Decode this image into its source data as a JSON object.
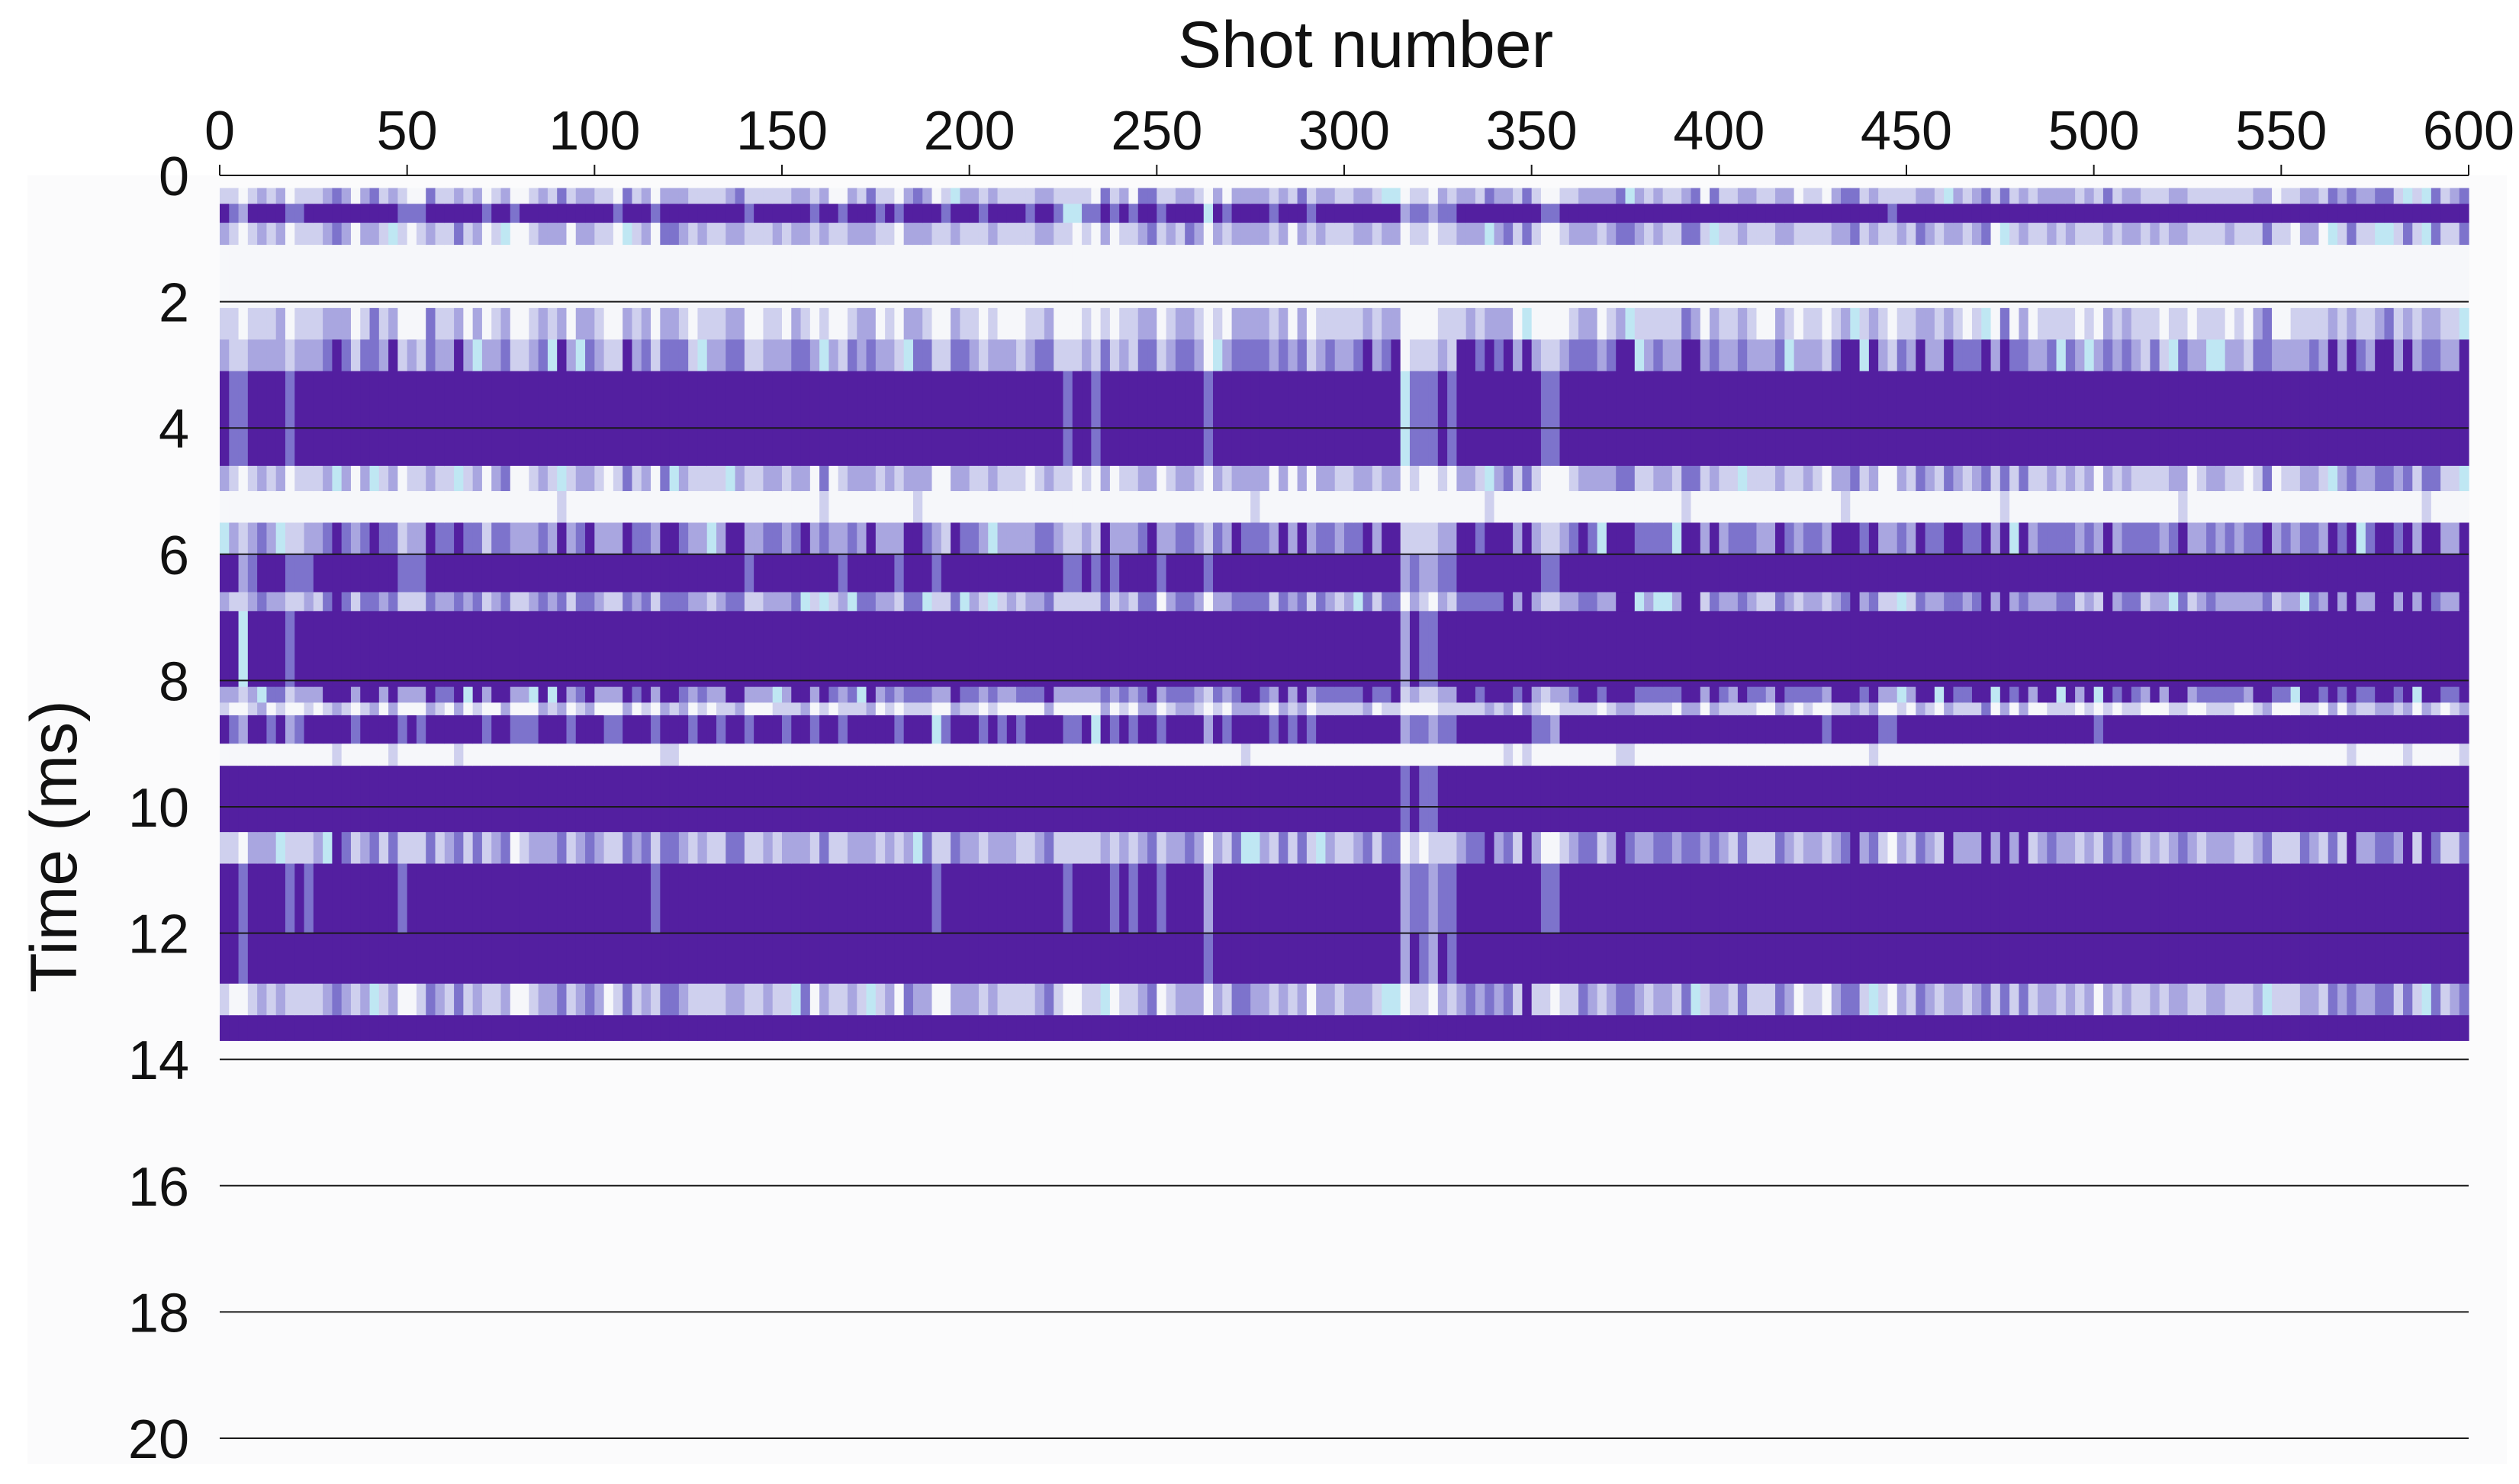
{
  "chart_data": {
    "type": "heatmap",
    "title": "",
    "xlabel": "Shot number",
    "ylabel": "Time  (ms)",
    "xlim": [
      0,
      600
    ],
    "ylim": [
      0,
      20
    ],
    "y_inverted": true,
    "x_ticks": [
      0,
      50,
      100,
      150,
      200,
      250,
      300,
      350,
      400,
      450,
      500,
      550,
      600
    ],
    "y_ticks": [
      0,
      2,
      4,
      6,
      8,
      10,
      12,
      14,
      16,
      18,
      20
    ],
    "grid": "horizontal lines at each y tick",
    "colors": {
      "background": "#fbfbfc",
      "empty_region": "#fdfdfd",
      "level_0": "#f6f7fa",
      "level_1": "#cfd0ee",
      "level_2": "#a9a6e0",
      "level_3": "#7d73cc",
      "level_4": "#531fa0",
      "accent_cyan": "#bfe7f3",
      "grid": "#1a1a1a"
    },
    "data_extent": {
      "x": [
        0,
        600
      ],
      "time_ms": [
        0.2,
        13.7
      ]
    },
    "x_segments": [
      {
        "x": [
          0,
          25
        ],
        "intensity": 0.45
      },
      {
        "x": [
          25,
          85
        ],
        "intensity": 0.72
      },
      {
        "x": [
          85,
          120
        ],
        "intensity": 0.68
      },
      {
        "x": [
          120,
          195
        ],
        "intensity": 0.6
      },
      {
        "x": [
          195,
          225
        ],
        "intensity": 0.66
      },
      {
        "x": [
          225,
          255
        ],
        "intensity": 0.55
      },
      {
        "x": [
          255,
          275
        ],
        "intensity": 0.5
      },
      {
        "x": [
          275,
          315
        ],
        "intensity": 0.66
      },
      {
        "x": [
          315,
          330
        ],
        "intensity": 0.32
      },
      {
        "x": [
          330,
          350
        ],
        "intensity": 0.92
      },
      {
        "x": [
          350,
          360
        ],
        "intensity": 0.6
      },
      {
        "x": [
          360,
          440
        ],
        "intensity": 0.8
      },
      {
        "x": [
          440,
          455
        ],
        "intensity": 0.68
      },
      {
        "x": [
          455,
          600
        ],
        "intensity": 0.84
      }
    ],
    "time_bands": [
      {
        "t": [
          0.2,
          0.45
        ],
        "intensity": 0.3
      },
      {
        "t": [
          0.45,
          0.75
        ],
        "intensity": 0.72
      },
      {
        "t": [
          0.75,
          1.1
        ],
        "intensity": 0.3
      },
      {
        "t": [
          1.1,
          2.1
        ],
        "intensity": 0.04
      },
      {
        "t": [
          2.1,
          2.6
        ],
        "intensity": 0.24
      },
      {
        "t": [
          2.6,
          3.1
        ],
        "intensity": 0.42
      },
      {
        "t": [
          3.1,
          4.6
        ],
        "intensity": 0.82
      },
      {
        "t": [
          4.6,
          5.0
        ],
        "intensity": 0.3
      },
      {
        "t": [
          5.0,
          5.5
        ],
        "intensity": 0.08
      },
      {
        "t": [
          5.5,
          6.0
        ],
        "intensity": 0.48
      },
      {
        "t": [
          6.0,
          6.6
        ],
        "intensity": 0.76
      },
      {
        "t": [
          6.6,
          6.9
        ],
        "intensity": 0.4
      },
      {
        "t": [
          6.9,
          8.1
        ],
        "intensity": 0.88
      },
      {
        "t": [
          8.1,
          8.35
        ],
        "intensity": 0.52
      },
      {
        "t": [
          8.35,
          8.55
        ],
        "intensity": 0.2
      },
      {
        "t": [
          8.55,
          9.0
        ],
        "intensity": 0.7
      },
      {
        "t": [
          9.0,
          9.35
        ],
        "intensity": 0.08
      },
      {
        "t": [
          9.35,
          10.4
        ],
        "intensity": 0.94
      },
      {
        "t": [
          10.4,
          10.9
        ],
        "intensity": 0.36
      },
      {
        "t": [
          10.9,
          12.0
        ],
        "intensity": 0.78
      },
      {
        "t": [
          12.0,
          12.8
        ],
        "intensity": 0.86
      },
      {
        "t": [
          12.8,
          13.3
        ],
        "intensity": 0.32
      },
      {
        "t": [
          13.3,
          13.7
        ],
        "intensity": 1.0
      }
    ]
  }
}
